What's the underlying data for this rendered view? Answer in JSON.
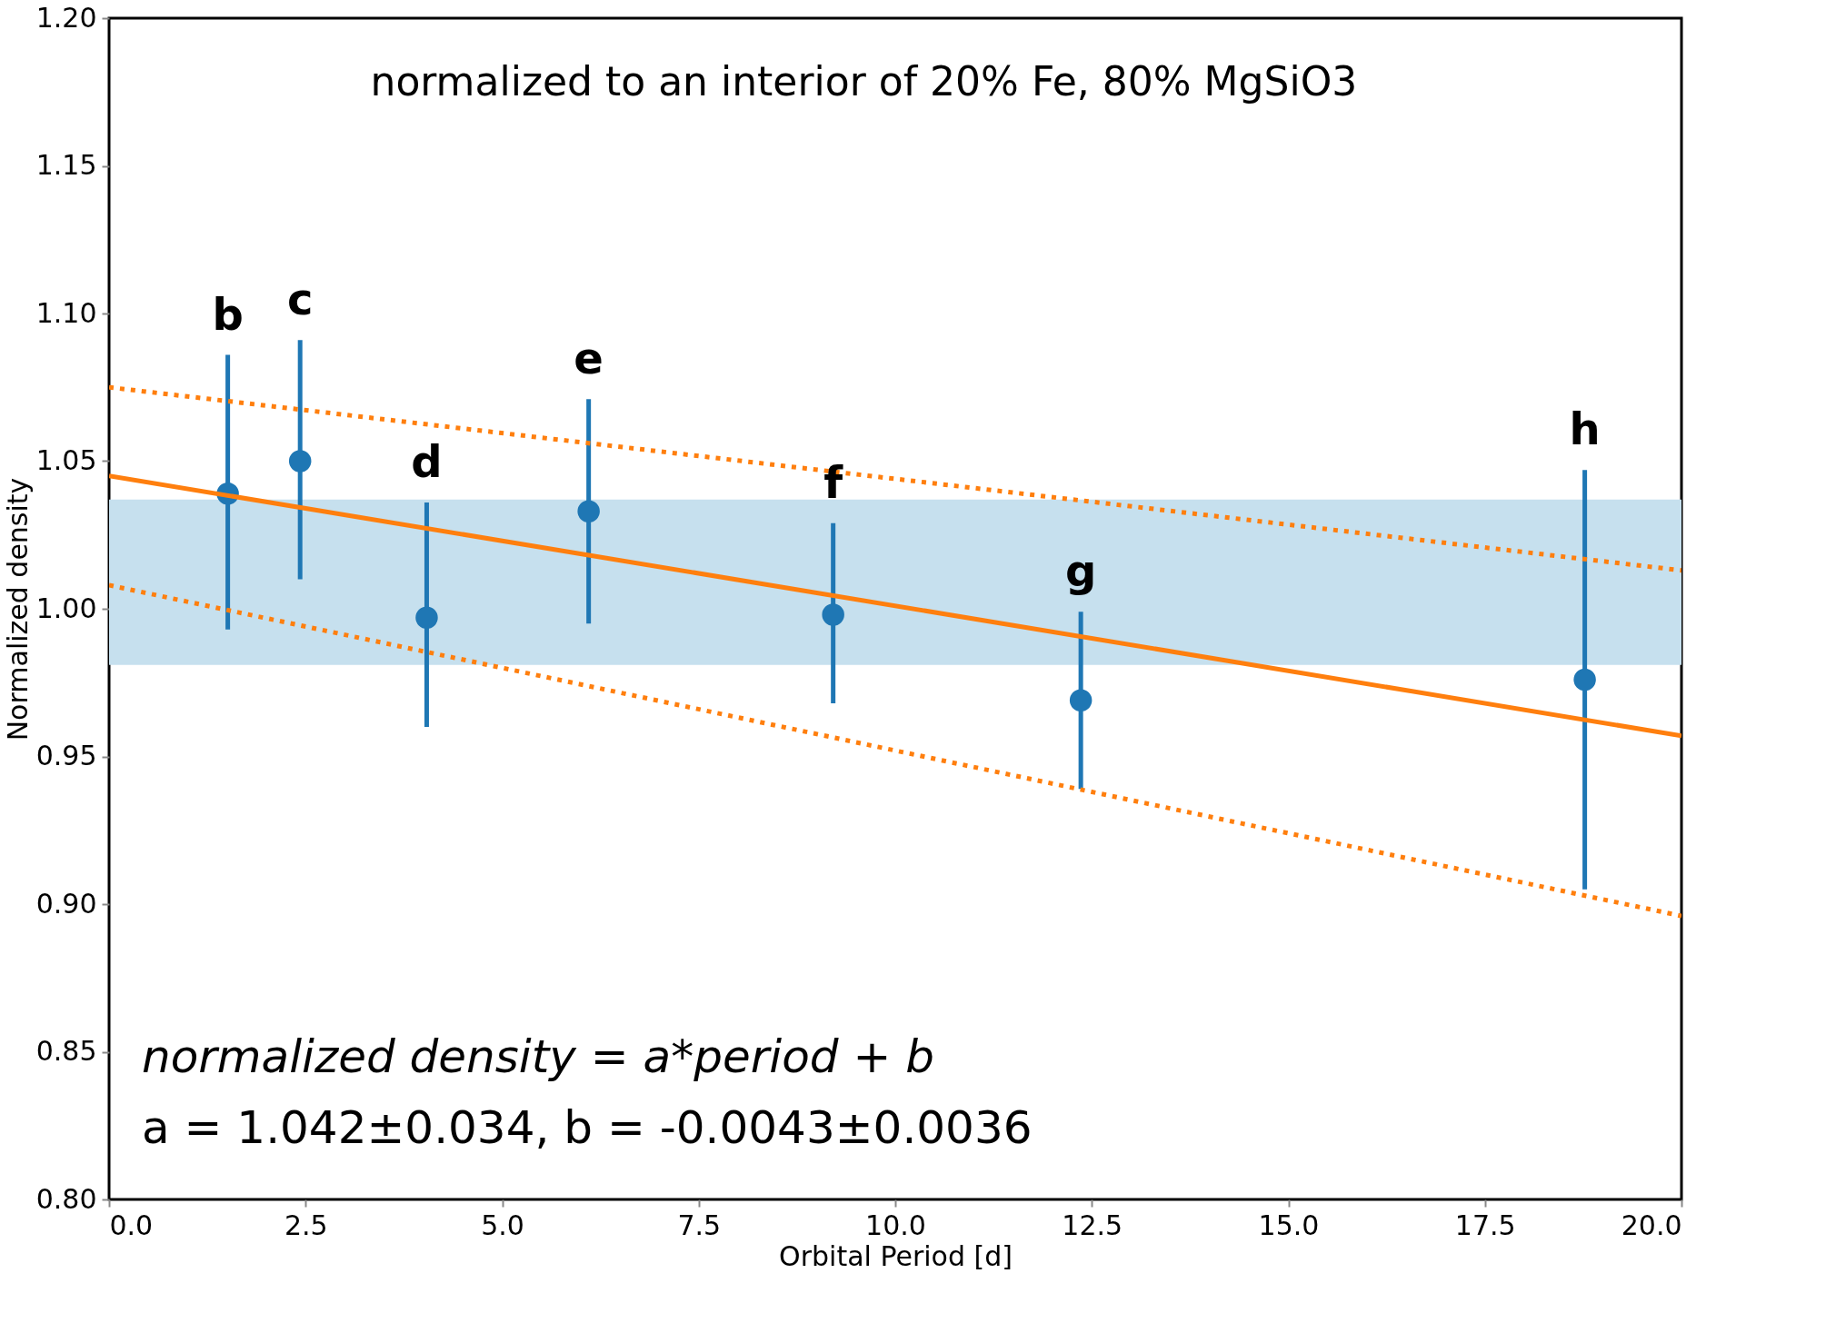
{
  "chart_data": {
    "type": "scatter",
    "xlabel": "Orbital Period [d]",
    "ylabel": "Normalized density",
    "xlim": [
      0,
      20
    ],
    "ylim": [
      0.8,
      1.2
    ],
    "xticks": [
      {
        "value": 0,
        "label": "0.0"
      },
      2.5,
      {
        "value": 5,
        "label": "5.0"
      },
      7.5,
      {
        "value": 10,
        "label": "10.0"
      },
      12.5,
      {
        "value": 15,
        "label": "15.0"
      },
      17.5,
      {
        "value": 20,
        "label": "20.0"
      }
    ],
    "yticks": [
      {
        "value": 0.8,
        "label": "0.80"
      },
      0.85,
      {
        "value": 0.9,
        "label": "0.90"
      },
      0.95,
      {
        "value": 1.0,
        "label": "1.00"
      },
      1.05,
      {
        "value": 1.1,
        "label": "1.10"
      },
      1.15,
      {
        "value": 1.2,
        "label": "1.20"
      }
    ],
    "grid": false,
    "bands": [
      {
        "axis": "y",
        "from": 0.981,
        "to": 1.037,
        "color": "#c6e0ee"
      }
    ],
    "series": [
      {
        "color": "#1f77b4",
        "marker": "circle",
        "x": [
          1.51,
          2.43,
          4.04,
          6.1,
          9.21,
          12.36,
          18.77
        ],
        "values": [
          1.039,
          1.05,
          0.997,
          1.033,
          0.998,
          0.969,
          0.976
        ],
        "errors": [
          [
            0.993,
            1.086
          ],
          [
            1.01,
            1.091
          ],
          [
            0.96,
            1.036
          ],
          [
            0.995,
            1.071
          ],
          [
            0.968,
            1.029
          ],
          [
            0.939,
            0.999
          ],
          [
            0.905,
            1.047
          ]
        ]
      },
      {
        "type": "line",
        "color": "#ff7f0e",
        "line_style": "solid",
        "x": [
          0,
          20
        ],
        "values": [
          1.045,
          0.957
        ]
      },
      {
        "type": "line",
        "color": "#ff7f0e",
        "line_style": "dotted",
        "x": [
          0,
          20
        ],
        "values": [
          1.075,
          1.013
        ]
      },
      {
        "type": "line",
        "color": "#ff7f0e",
        "line_style": "dotted",
        "x": [
          0,
          20
        ],
        "values": [
          1.008,
          0.896
        ]
      }
    ],
    "annotations": [
      "normalized to an interior of 20% Fe, 80% MgSiO3",
      "normalized density = a*period + b",
      "a = 1.042±0.034, b = -0.0043±0.0036",
      "b",
      "c",
      "d",
      "e",
      "f",
      "g",
      "h"
    ]
  }
}
